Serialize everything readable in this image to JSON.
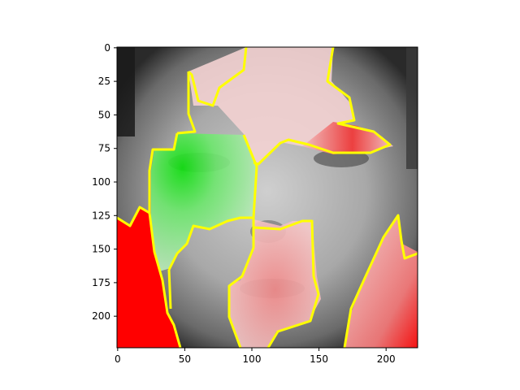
{
  "image": {
    "description_icon": "grayscale-face-heatmap",
    "overlay_colors": {
      "positive": "#ff0000",
      "negative": "#00ff00",
      "boundary": "#ffff00",
      "base_gray_dark": "#1e1e1e",
      "base_gray_light": "#d8d8d8"
    }
  },
  "chart_data": {
    "type": "heatmap",
    "title": "",
    "xlabel": "",
    "ylabel": "",
    "xlim": [
      0,
      224
    ],
    "ylim": [
      224,
      0
    ],
    "x_ticks": [
      0,
      50,
      100,
      150,
      200
    ],
    "y_ticks": [
      0,
      25,
      50,
      75,
      100,
      125,
      150,
      175,
      200
    ],
    "x_tick_labels": [
      "0",
      "50",
      "100",
      "150",
      "200"
    ],
    "y_tick_labels": [
      "0",
      "25",
      "50",
      "75",
      "100",
      "125",
      "150",
      "175",
      "200"
    ],
    "grid": false
  }
}
